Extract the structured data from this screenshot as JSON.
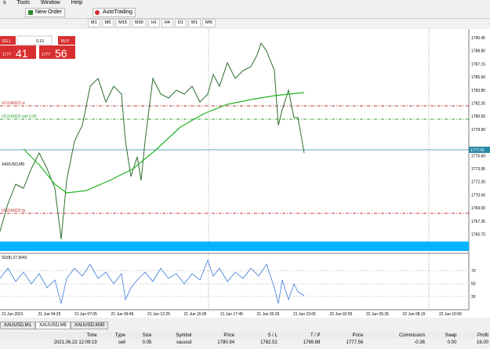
{
  "menu": [
    "s",
    "Tools",
    "Window",
    "Help"
  ],
  "toolbar": {
    "new_order": "New Order",
    "auto_trading": "AutoTrading"
  },
  "timeframes": [
    "M1",
    "M5",
    "M15",
    "M30",
    "H1",
    "H4",
    "D1",
    "W1",
    "MN"
  ],
  "trade_panel": {
    "sell": "SELL",
    "lot": "0.10",
    "buy": "BUY",
    "bid_big": "1777",
    "bid_small": "41",
    "ask_big": "1777",
    "ask_small": "56"
  },
  "chart": {
    "title": "XAUUSD,M5",
    "price_labels": [
      "1790.45",
      "1788.80",
      "1787.15",
      "1785.50",
      "1783.85",
      "1782.20",
      "1780.55",
      "1778.90",
      "1775.60",
      "1773.95",
      "1772.30",
      "1770.65",
      "1769.00",
      "1767.35",
      "1765.70"
    ],
    "current_price": "1777.41",
    "sl_label": "#21146822 sl",
    "order_label": "#21146822 sell 0.05",
    "tp_label": "#21146822 tp",
    "indicator_title": "SD(8) 27.9942",
    "indicator_labels": [
      "70",
      "50",
      "30"
    ],
    "time_labels": [
      "21 Jun 2021",
      "21 Jun 04:25",
      "21 Jun 07:05",
      "21 Jun 09:45",
      "21 Jun 12:25",
      "21 Jun 15:05",
      "21 Jun 17:45",
      "21 Jun 20:25",
      "21 Jun 23:05",
      "22 Jun 02:55",
      "22 Jun 05:35",
      "22 Jun 08:15",
      "22 Jun 10:55"
    ]
  },
  "tabs": [
    "XAUUSD,M1",
    "XAUUSD,M5",
    "XAUUSD,M30"
  ],
  "table": {
    "header": [
      "Time",
      "Type",
      "Size",
      "Symbol",
      "Price",
      "S / L",
      "T / P",
      "Price",
      "Commission",
      "Swap",
      "Profit"
    ],
    "rows": [
      [
        "2021.06.22 12:09:19",
        "sell",
        "0.05",
        "xauusd",
        "1780.94",
        "1782.52",
        "1769.88",
        "1777.56",
        "-0.36",
        "0.00",
        "16.00"
      ]
    ]
  }
}
